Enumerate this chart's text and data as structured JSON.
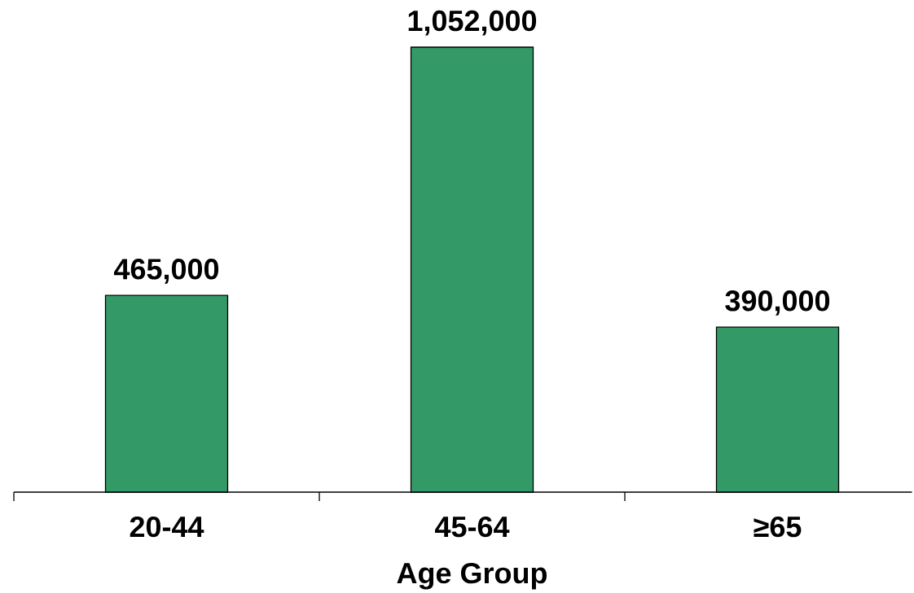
{
  "chart_data": {
    "type": "bar",
    "xlabel": "Age Group",
    "categories": [
      "20-44",
      "45-64",
      "≥65"
    ],
    "values": [
      465000,
      1052000,
      390000
    ],
    "value_labels": [
      "465,000",
      "1,052,000",
      "390,000"
    ],
    "color": "#339966"
  }
}
